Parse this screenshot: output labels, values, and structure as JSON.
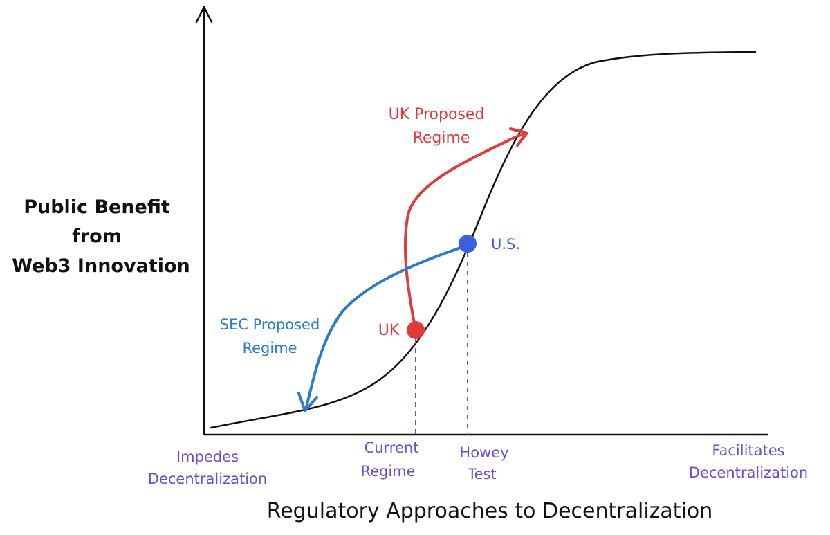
{
  "axes": {
    "y_label_lines": [
      "Public Benefit",
      "from",
      "Web3 Innovation"
    ],
    "x_title": "Regulatory Approaches to Decentralization"
  },
  "x_ticks": {
    "impedes": [
      "Impedes",
      "Decentralization"
    ],
    "current": [
      "Current",
      "Regime"
    ],
    "howey": [
      "Howey",
      "Test"
    ],
    "facilitates": [
      "Facilitates",
      "Decentralization"
    ]
  },
  "markers": {
    "uk": "UK",
    "us": "U.S."
  },
  "annotations": {
    "uk_proposed": [
      "UK Proposed",
      "Regime"
    ],
    "sec_proposed": [
      "SEC Proposed",
      "Regime"
    ]
  },
  "colors": {
    "curve": "#111111",
    "uk": "#e03a3a",
    "us": "#3b5fe0",
    "sec_arrow": "#2a7dc9",
    "tick_text": "#6a4fd6"
  }
}
